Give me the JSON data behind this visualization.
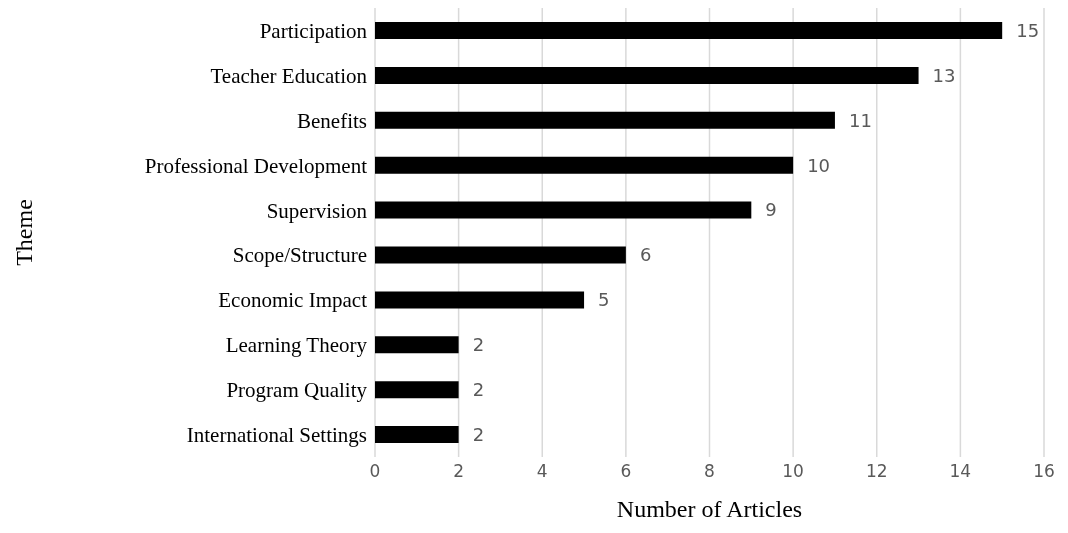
{
  "chart_data": {
    "type": "bar",
    "orientation": "horizontal",
    "xlabel": "Number of Articles",
    "ylabel": "Theme",
    "categories": [
      "Participation",
      "Teacher Education",
      "Benefits",
      "Professional Development",
      "Supervision",
      "Scope/Structure",
      "Economic Impact",
      "Learning Theory",
      "Program Quality",
      "International Settings"
    ],
    "values": [
      15,
      13,
      11,
      10,
      9,
      6,
      5,
      2,
      2,
      2
    ],
    "color": "#000000",
    "xlim": [
      0,
      16
    ],
    "xticks": [
      0,
      2,
      4,
      6,
      8,
      10,
      12,
      14,
      16
    ],
    "grid": "x",
    "data_labels": true
  }
}
